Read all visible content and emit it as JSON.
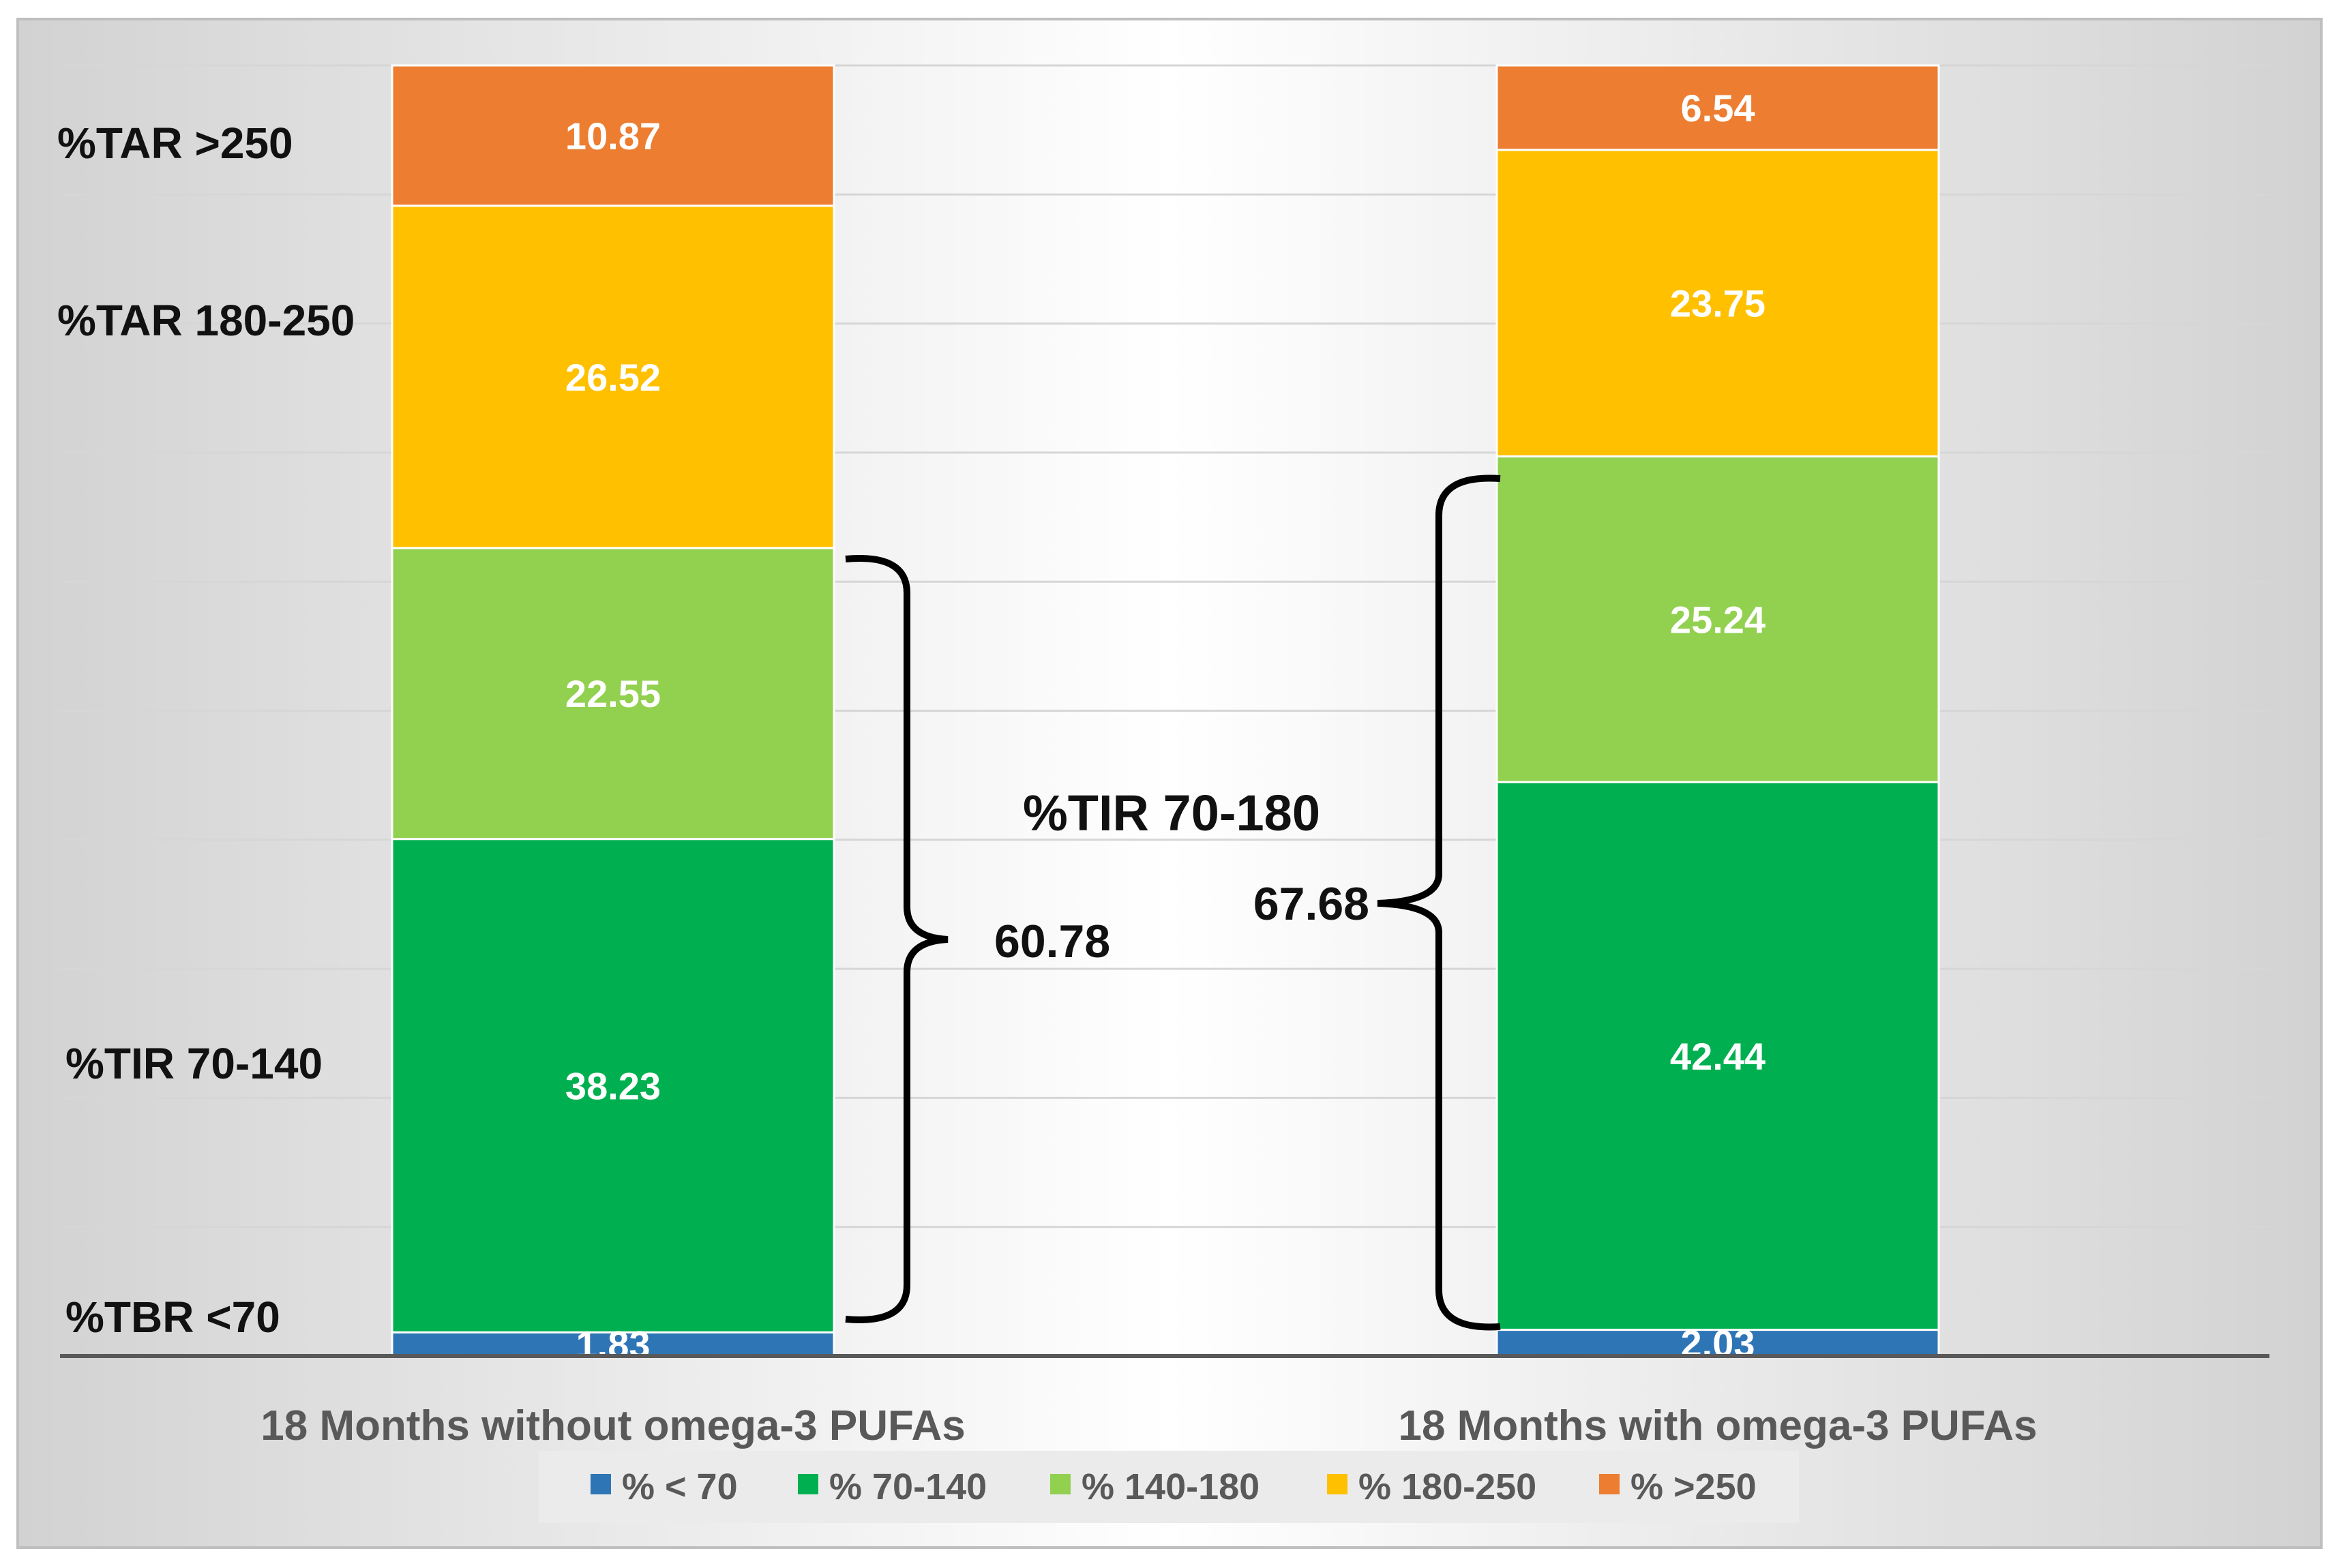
{
  "chart_data": {
    "type": "bar",
    "stacked": true,
    "categories": [
      "18 Months without omega-3 PUFAs",
      "18 Months with omega-3 PUFAs"
    ],
    "series": [
      {
        "name": "% < 70",
        "values": [
          1.83,
          2.03
        ],
        "color": "#2e75b6"
      },
      {
        "name": "% 70-140",
        "values": [
          38.23,
          42.44
        ],
        "color": "#00b050"
      },
      {
        "name": "% 140-180",
        "values": [
          22.55,
          25.24
        ],
        "color": "#92d050"
      },
      {
        "name": "% 180-250",
        "values": [
          26.52,
          23.75
        ],
        "color": "#ffc000"
      },
      {
        "name": "% >250",
        "values": [
          10.87,
          6.54
        ],
        "color": "#ed7d31"
      }
    ],
    "ylim": [
      0,
      100
    ],
    "grid": true,
    "legend": "bottom",
    "side_labels": [
      "%TAR >250",
      "%TAR 180-250",
      "%TIR 70-140",
      "%TBR <70"
    ],
    "annotations": {
      "title": "%TIR 70-180",
      "bracket_values": [
        "60.78",
        "67.68"
      ]
    }
  }
}
